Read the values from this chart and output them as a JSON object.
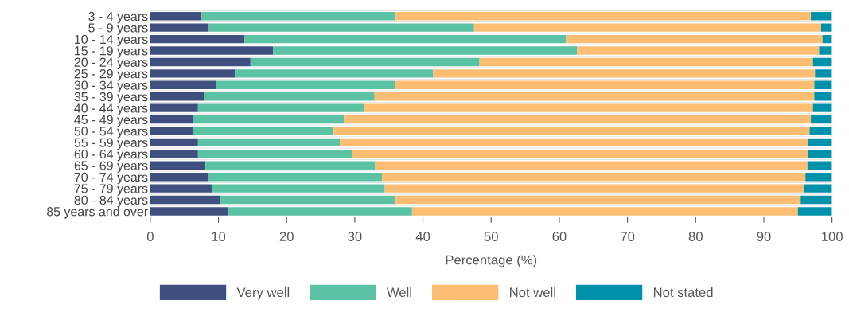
{
  "chart_data": {
    "type": "bar",
    "orientation": "horizontal",
    "stacked": true,
    "xlabel": "Percentage (%)",
    "categories": [
      "3 - 4 years",
      "5 - 9 years",
      "10 - 14 years",
      "15 - 19 years",
      "20 - 24 years",
      "25 - 29 years",
      "30 - 34 years",
      "35 - 39 years",
      "40 - 44 years",
      "45 - 49 years",
      "50 - 54 years",
      "55 - 59 years",
      "60 - 64 years",
      "65 - 69 years",
      "70 - 74 years",
      "75 - 79 years",
      "80 - 84 years",
      "85 years and over"
    ],
    "series": [
      {
        "name": "Very well",
        "color": "#3f4f80",
        "values": [
          7.5,
          8.6,
          13.8,
          18.0,
          14.7,
          12.4,
          9.6,
          7.9,
          7.0,
          6.3,
          6.2,
          7.0,
          7.0,
          8.1,
          8.6,
          9.0,
          10.2,
          11.5
        ]
      },
      {
        "name": "Well",
        "color": "#5bc2a4",
        "values": [
          28.5,
          38.9,
          47.2,
          44.6,
          33.6,
          29.1,
          26.3,
          25.0,
          24.4,
          22.1,
          20.7,
          20.8,
          22.6,
          24.9,
          25.4,
          25.4,
          25.8,
          26.9
        ]
      },
      {
        "name": "Not well",
        "color": "#fdbe74",
        "values": [
          60.9,
          50.9,
          37.6,
          35.5,
          48.9,
          56.0,
          61.5,
          64.5,
          65.8,
          68.5,
          69.8,
          68.7,
          66.9,
          63.4,
          62.1,
          61.5,
          59.4,
          56.6
        ]
      },
      {
        "name": "Not stated",
        "color": "#0092ab",
        "values": [
          3.1,
          1.6,
          1.4,
          1.9,
          2.8,
          2.5,
          2.6,
          2.6,
          2.8,
          3.1,
          3.3,
          3.5,
          3.5,
          3.6,
          3.9,
          4.1,
          4.6,
          5.0
        ]
      }
    ],
    "xlim": [
      0,
      100
    ],
    "xticks": [
      0,
      10,
      20,
      30,
      40,
      50,
      60,
      70,
      80,
      90,
      100
    ],
    "grid": false,
    "legend": "bottom"
  }
}
